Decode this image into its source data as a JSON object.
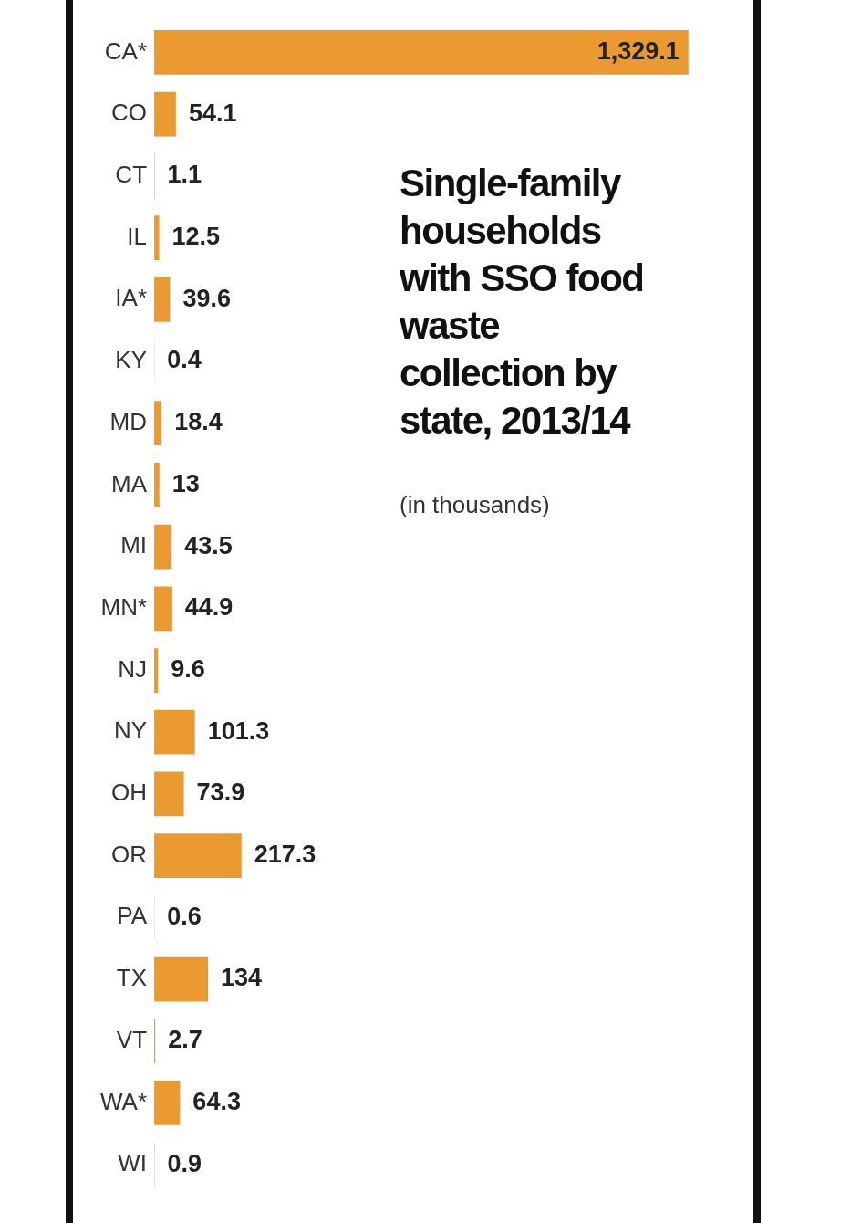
{
  "chart_data": {
    "type": "bar",
    "orientation": "horizontal",
    "title": "Single-family households with SSO food waste collection by state, 2013/14",
    "subtitle": "(in thousands)",
    "categories": [
      "CA*",
      "CO",
      "CT",
      "IL",
      "IA*",
      "KY",
      "MD",
      "MA",
      "MI",
      "MN*",
      "NJ",
      "NY",
      "OH",
      "OR",
      "PA",
      "TX",
      "VT",
      "WA*",
      "WI"
    ],
    "values": [
      1329.1,
      54.1,
      1.1,
      12.5,
      39.6,
      0.4,
      18.4,
      13,
      43.5,
      44.9,
      9.6,
      101.3,
      73.9,
      217.3,
      0.6,
      134,
      2.7,
      64.3,
      0.9
    ],
    "value_labels": [
      "1,329.1",
      "54.1",
      "1.1",
      "12.5",
      "39.6",
      "0.4",
      "18.4",
      "13",
      "43.5",
      "44.9",
      "9.6",
      "101.3",
      "73.9",
      "217.3",
      "0.6",
      "134",
      "2.7",
      "64.3",
      "0.9"
    ],
    "color": "#eb9a32",
    "tick_labels": "y",
    "grid": false,
    "legend": false
  }
}
